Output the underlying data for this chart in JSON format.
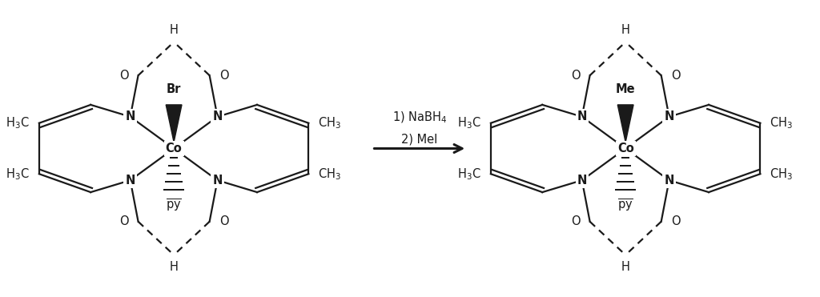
{
  "background_color": "#ffffff",
  "line_color": "#1a1a1a",
  "figsize": [
    10.24,
    3.71
  ],
  "dpi": 100,
  "mol1_top_label": "Br",
  "mol2_top_label": "Me",
  "arrow_label_1": "1) NaBH$_4$",
  "arrow_label_2": "2) MeI"
}
